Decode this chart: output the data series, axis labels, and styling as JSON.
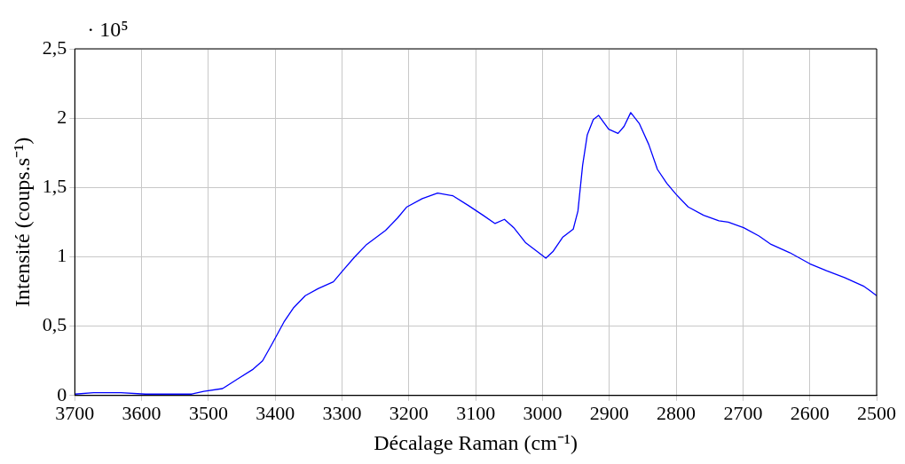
{
  "chart_data": {
    "type": "line",
    "xlabel": "Décalage Raman (cm⁻¹)",
    "ylabel": "Intensité (coups.s⁻¹)",
    "annotations": [
      "· 10⁵"
    ],
    "xlim": [
      3700,
      2500
    ],
    "xticks": [
      3700,
      3600,
      3500,
      3400,
      3300,
      3200,
      3100,
      3000,
      2900,
      2800,
      2700,
      2600,
      2500
    ],
    "ylim": [
      0,
      2.5
    ],
    "yticks": [
      0,
      {
        "value": 0.5,
        "label": "0,5"
      },
      1,
      {
        "value": 1.5,
        "label": "1,5"
      },
      2,
      {
        "value": 2.5,
        "label": "2,5"
      }
    ],
    "grid": true,
    "legend": false,
    "marker": "none",
    "line_style": "solid",
    "series": [
      {
        "color": "#0000ff",
        "x": [
          3700,
          3672,
          3631,
          3594,
          3557,
          3525,
          3507,
          3479,
          3456,
          3433,
          3419,
          3405,
          3387,
          3373,
          3355,
          3336,
          3313,
          3299,
          3281,
          3263,
          3235,
          3217,
          3203,
          3180,
          3157,
          3134,
          3111,
          3089,
          3071,
          3057,
          3043,
          3025,
          3011,
          2995,
          2984,
          2970,
          2954,
          2947,
          2940,
          2933,
          2924,
          2916,
          2901,
          2887,
          2878,
          2868,
          2855,
          2841,
          2828,
          2814,
          2800,
          2782,
          2759,
          2736,
          2722,
          2699,
          2676,
          2658,
          2630,
          2600,
          2575,
          2548,
          2520,
          2511,
          2500
        ],
        "values": [
          0.01,
          0.02,
          0.02,
          0.01,
          0.01,
          0.01,
          0.03,
          0.05,
          0.12,
          0.19,
          0.25,
          0.37,
          0.53,
          0.63,
          0.72,
          0.77,
          0.82,
          0.9,
          1.0,
          1.09,
          1.19,
          1.28,
          1.36,
          1.42,
          1.46,
          1.44,
          1.37,
          1.3,
          1.24,
          1.27,
          1.21,
          1.1,
          1.05,
          0.99,
          1.04,
          1.14,
          1.2,
          1.33,
          1.66,
          1.88,
          1.99,
          2.02,
          1.92,
          1.89,
          1.94,
          2.04,
          1.96,
          1.81,
          1.63,
          1.53,
          1.45,
          1.36,
          1.3,
          1.26,
          1.25,
          1.21,
          1.15,
          1.09,
          1.03,
          0.95,
          0.9,
          0.85,
          0.79,
          0.76,
          0.72
        ]
      }
    ]
  }
}
